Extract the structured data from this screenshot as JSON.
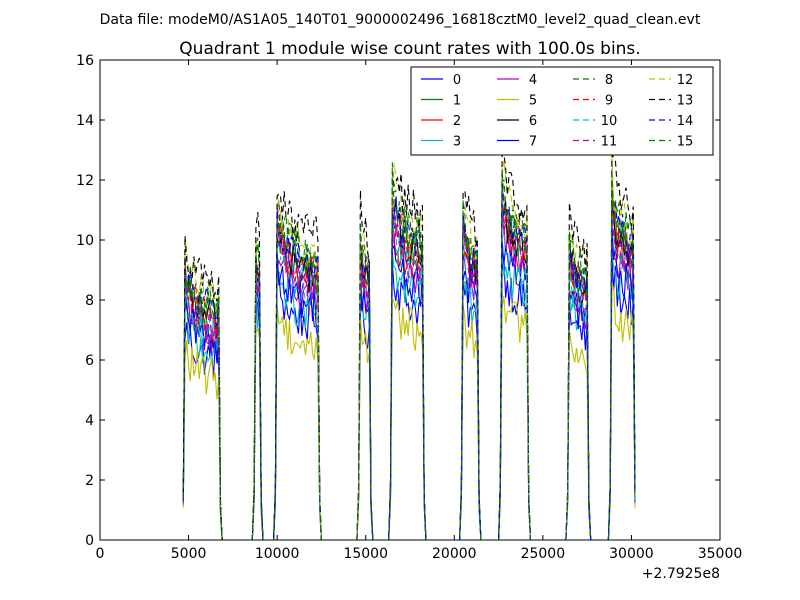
{
  "suptitle": "Data file: modeM0/AS1A05_140T01_9000002496_16818cztM0_level2_quad_clean.evt",
  "chart_data": {
    "type": "line",
    "title": "Quadrant 1 module wise count rates with 100.0s bins.",
    "xlabel": "",
    "ylabel": "",
    "xlim": [
      0,
      35000
    ],
    "ylim": [
      0,
      16
    ],
    "x_offset_text": "+2.7925e8",
    "xticks": [
      0,
      5000,
      10000,
      15000,
      20000,
      25000,
      30000,
      35000
    ],
    "xtick_labels": [
      "0",
      "5000",
      "10000",
      "15000",
      "20000",
      "25000",
      "30000",
      "35000"
    ],
    "yticks": [
      0,
      2,
      4,
      6,
      8,
      10,
      12,
      14,
      16
    ],
    "ytick_labels": [
      "0",
      "2",
      "4",
      "6",
      "8",
      "10",
      "12",
      "14",
      "16"
    ],
    "grid": false,
    "legend_position": "top-right",
    "legend_columns": 4,
    "bin_width": 100,
    "segments": [
      {
        "start": 4700,
        "end": 6800,
        "base": 8.0
      },
      {
        "start": 8700,
        "end": 9100,
        "base": 9.5
      },
      {
        "start": 9900,
        "end": 12400,
        "base": 9.6
      },
      {
        "start": 14600,
        "end": 15300,
        "base": 9.3
      },
      {
        "start": 16400,
        "end": 18300,
        "base": 10.3
      },
      {
        "start": 20400,
        "end": 21400,
        "base": 9.8
      },
      {
        "start": 22600,
        "end": 24200,
        "base": 10.6
      },
      {
        "start": 26400,
        "end": 27600,
        "base": 9.0
      },
      {
        "start": 28800,
        "end": 30200,
        "base": 10.4
      }
    ],
    "series": [
      {
        "name": "0",
        "color": "#0000ff",
        "style": "solid",
        "scale": 0.78
      },
      {
        "name": "1",
        "color": "#008000",
        "style": "solid",
        "scale": 0.95
      },
      {
        "name": "2",
        "color": "#ff0000",
        "style": "solid",
        "scale": 0.92
      },
      {
        "name": "3",
        "color": "#00bfbf",
        "style": "solid",
        "scale": 0.82
      },
      {
        "name": "4",
        "color": "#bf00bf",
        "style": "solid",
        "scale": 0.88
      },
      {
        "name": "5",
        "color": "#bfbf00",
        "style": "solid",
        "scale": 0.7
      },
      {
        "name": "6",
        "color": "#000000",
        "style": "solid",
        "scale": 0.96
      },
      {
        "name": "7",
        "color": "#0000ff",
        "style": "solid",
        "scale": 0.85
      },
      {
        "name": "8",
        "color": "#008000",
        "style": "dashed",
        "scale": 1.0
      },
      {
        "name": "9",
        "color": "#ff0000",
        "style": "dashed",
        "scale": 0.97
      },
      {
        "name": "10",
        "color": "#00bfbf",
        "style": "dashed",
        "scale": 0.9
      },
      {
        "name": "11",
        "color": "#bf00bf",
        "style": "dashed",
        "scale": 0.93
      },
      {
        "name": "12",
        "color": "#bfbf00",
        "style": "dashed",
        "scale": 1.05
      },
      {
        "name": "13",
        "color": "#000000",
        "style": "dashed",
        "scale": 1.1
      },
      {
        "name": "14",
        "color": "#0000ff",
        "style": "dashed",
        "scale": 0.99
      },
      {
        "name": "15",
        "color": "#008000",
        "style": "dashed",
        "scale": 1.02
      }
    ]
  }
}
